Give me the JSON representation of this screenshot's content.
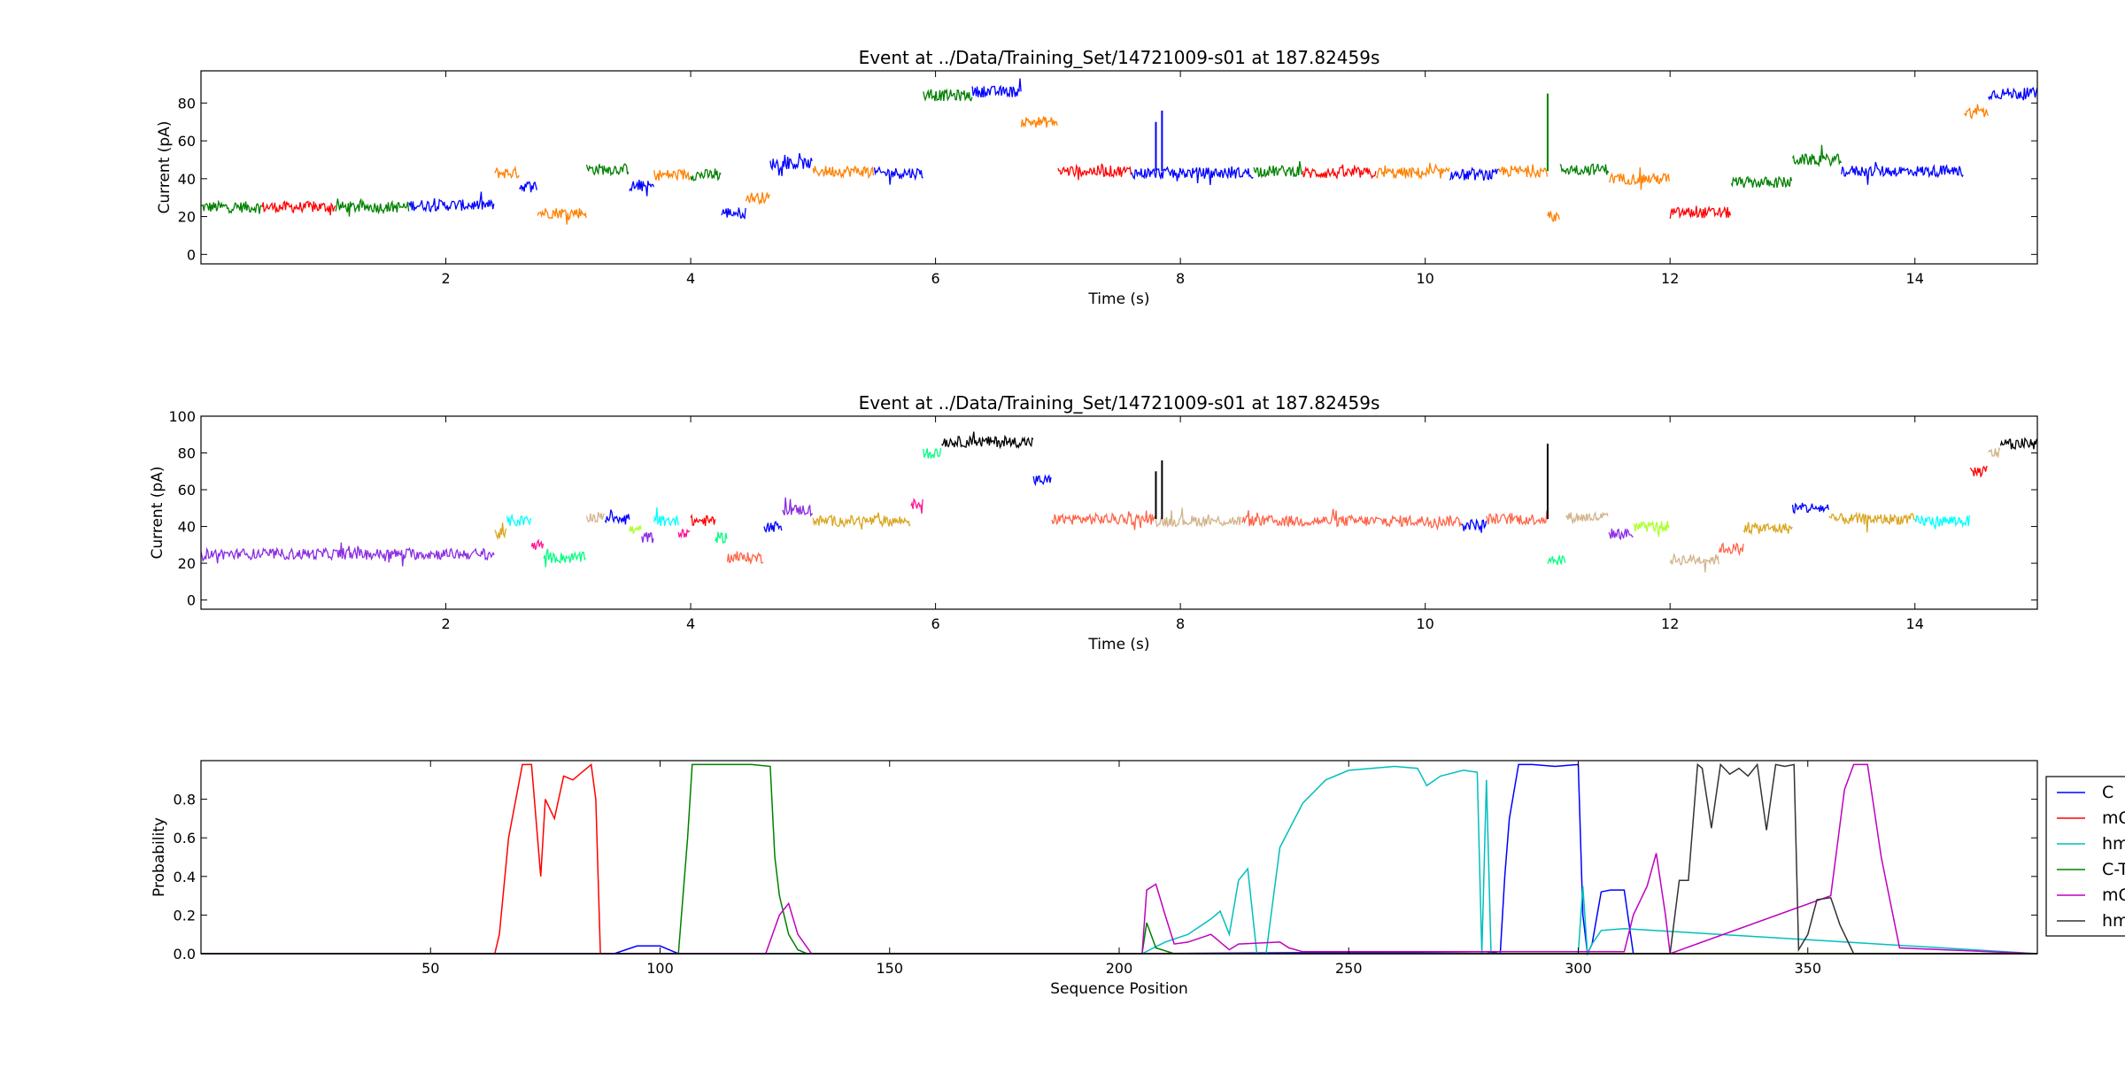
{
  "chart_data": [
    {
      "type": "line",
      "title": "Event at ../Data/Training_Set/14721009-s01 at 187.82459s",
      "xlabel": "Time (s)",
      "ylabel": "Current (pA)",
      "xlim": [
        0,
        15
      ],
      "ylim": [
        -5,
        97
      ],
      "xticks": [
        2,
        4,
        6,
        8,
        10,
        12,
        14
      ],
      "yticks": [
        0,
        20,
        40,
        60,
        80
      ],
      "grid": false,
      "segments": [
        {
          "t0": 0.0,
          "t1": 0.5,
          "level": 25,
          "color": "#008000"
        },
        {
          "t0": 0.5,
          "t1": 1.1,
          "level": 25,
          "color": "#ff0000"
        },
        {
          "t0": 1.1,
          "t1": 1.7,
          "level": 25,
          "color": "#008000"
        },
        {
          "t0": 1.7,
          "t1": 2.4,
          "level": 26,
          "color": "#0000ff"
        },
        {
          "t0": 2.4,
          "t1": 2.6,
          "level": 43,
          "color": "#ff8000"
        },
        {
          "t0": 2.6,
          "t1": 2.75,
          "level": 36,
          "color": "#0000ff"
        },
        {
          "t0": 2.75,
          "t1": 3.15,
          "level": 22,
          "color": "#ff8000"
        },
        {
          "t0": 3.15,
          "t1": 3.5,
          "level": 45,
          "color": "#008000"
        },
        {
          "t0": 3.5,
          "t1": 3.7,
          "level": 36,
          "color": "#0000ff"
        },
        {
          "t0": 3.7,
          "t1": 4.0,
          "level": 42,
          "color": "#ff8000"
        },
        {
          "t0": 4.0,
          "t1": 4.25,
          "level": 42,
          "color": "#008000"
        },
        {
          "t0": 4.25,
          "t1": 4.45,
          "level": 22,
          "color": "#0000ff"
        },
        {
          "t0": 4.45,
          "t1": 4.65,
          "level": 30,
          "color": "#ff8000"
        },
        {
          "t0": 4.65,
          "t1": 5.0,
          "level": 48,
          "color": "#0000ff"
        },
        {
          "t0": 5.0,
          "t1": 5.5,
          "level": 44,
          "color": "#ff8000"
        },
        {
          "t0": 5.5,
          "t1": 5.9,
          "level": 43,
          "color": "#0000ff"
        },
        {
          "t0": 5.9,
          "t1": 6.3,
          "level": 84,
          "color": "#008000"
        },
        {
          "t0": 6.3,
          "t1": 6.7,
          "level": 86,
          "color": "#0000ff"
        },
        {
          "t0": 6.7,
          "t1": 7.0,
          "level": 70,
          "color": "#ff8000"
        },
        {
          "t0": 7.0,
          "t1": 7.6,
          "level": 44,
          "color": "#ff0000"
        },
        {
          "t0": 7.6,
          "t1": 8.6,
          "level": 43,
          "color": "#0000ff"
        },
        {
          "t0": 8.6,
          "t1": 9.0,
          "level": 44,
          "color": "#008000"
        },
        {
          "t0": 9.0,
          "t1": 9.6,
          "level": 43,
          "color": "#ff0000"
        },
        {
          "t0": 9.6,
          "t1": 10.2,
          "level": 43,
          "color": "#ff8000"
        },
        {
          "t0": 10.2,
          "t1": 10.6,
          "level": 42,
          "color": "#0000ff"
        },
        {
          "t0": 10.6,
          "t1": 11.0,
          "level": 44,
          "color": "#ff8000"
        },
        {
          "t0": 11.0,
          "t1": 11.1,
          "level": 20,
          "color": "#ff8000"
        },
        {
          "t0": 11.1,
          "t1": 11.5,
          "level": 45,
          "color": "#008000"
        },
        {
          "t0": 11.5,
          "t1": 12.0,
          "level": 40,
          "color": "#ff8000"
        },
        {
          "t0": 12.0,
          "t1": 12.5,
          "level": 22,
          "color": "#ff0000"
        },
        {
          "t0": 12.5,
          "t1": 13.0,
          "level": 38,
          "color": "#008000"
        },
        {
          "t0": 13.0,
          "t1": 13.4,
          "level": 50,
          "color": "#008000"
        },
        {
          "t0": 13.4,
          "t1": 14.4,
          "level": 44,
          "color": "#0000ff"
        },
        {
          "t0": 14.4,
          "t1": 14.6,
          "level": 75,
          "color": "#ff8000"
        },
        {
          "t0": 14.6,
          "t1": 15.0,
          "level": 85,
          "color": "#0000ff"
        }
      ],
      "spikes": [
        {
          "t": 7.8,
          "from": 44,
          "to": 70,
          "color": "#0000ff"
        },
        {
          "t": 7.85,
          "from": 44,
          "to": 76,
          "color": "#0000ff"
        },
        {
          "t": 11.0,
          "from": 44,
          "to": 85,
          "color": "#008000"
        }
      ]
    },
    {
      "type": "line",
      "title": "Event at ../Data/Training_Set/14721009-s01 at 187.82459s",
      "xlabel": "Time (s)",
      "ylabel": "Current (pA)",
      "xlim": [
        0,
        15
      ],
      "ylim": [
        -5,
        100
      ],
      "xticks": [
        2,
        4,
        6,
        8,
        10,
        12,
        14
      ],
      "yticks": [
        0,
        20,
        40,
        60,
        80,
        100
      ],
      "grid": false,
      "segments": [
        {
          "t0": 0.0,
          "t1": 2.4,
          "level": 25,
          "color": "#8a2be2"
        },
        {
          "t0": 2.4,
          "t1": 2.5,
          "level": 36,
          "color": "#daa520"
        },
        {
          "t0": 2.5,
          "t1": 2.7,
          "level": 43,
          "color": "#00ffff"
        },
        {
          "t0": 2.7,
          "t1": 2.8,
          "level": 30,
          "color": "#ff1493"
        },
        {
          "t0": 2.8,
          "t1": 3.15,
          "level": 23,
          "color": "#00ff7f"
        },
        {
          "t0": 3.15,
          "t1": 3.3,
          "level": 45,
          "color": "#d2b48c"
        },
        {
          "t0": 3.3,
          "t1": 3.5,
          "level": 45,
          "color": "#0000ff"
        },
        {
          "t0": 3.5,
          "t1": 3.6,
          "level": 38,
          "color": "#adff2f"
        },
        {
          "t0": 3.6,
          "t1": 3.7,
          "level": 34,
          "color": "#8a2be2"
        },
        {
          "t0": 3.7,
          "t1": 3.9,
          "level": 43,
          "color": "#00ffff"
        },
        {
          "t0": 3.9,
          "t1": 4.0,
          "level": 37,
          "color": "#ff1493"
        },
        {
          "t0": 4.0,
          "t1": 4.2,
          "level": 43,
          "color": "#ff0000"
        },
        {
          "t0": 4.2,
          "t1": 4.3,
          "level": 34,
          "color": "#00ff7f"
        },
        {
          "t0": 4.3,
          "t1": 4.6,
          "level": 23,
          "color": "#ff6347"
        },
        {
          "t0": 4.6,
          "t1": 4.75,
          "level": 40,
          "color": "#0000ff"
        },
        {
          "t0": 4.75,
          "t1": 5.0,
          "level": 49,
          "color": "#8a2be2"
        },
        {
          "t0": 5.0,
          "t1": 5.8,
          "level": 43,
          "color": "#daa520"
        },
        {
          "t0": 5.8,
          "t1": 5.9,
          "level": 52,
          "color": "#ff1493"
        },
        {
          "t0": 5.9,
          "t1": 6.05,
          "level": 80,
          "color": "#00ff7f"
        },
        {
          "t0": 6.05,
          "t1": 6.8,
          "level": 86,
          "color": "#000000"
        },
        {
          "t0": 6.8,
          "t1": 6.95,
          "level": 65,
          "color": "#0000ff"
        },
        {
          "t0": 6.95,
          "t1": 7.8,
          "level": 44,
          "color": "#ff6347"
        },
        {
          "t0": 7.8,
          "t1": 8.5,
          "level": 43,
          "color": "#d2b48c"
        },
        {
          "t0": 8.5,
          "t1": 10.3,
          "level": 43,
          "color": "#ff6347"
        },
        {
          "t0": 10.3,
          "t1": 10.5,
          "level": 41,
          "color": "#0000ff"
        },
        {
          "t0": 10.5,
          "t1": 11.0,
          "level": 44,
          "color": "#ff6347"
        },
        {
          "t0": 11.0,
          "t1": 11.15,
          "level": 22,
          "color": "#00ff7f"
        },
        {
          "t0": 11.15,
          "t1": 11.5,
          "level": 45,
          "color": "#d2b48c"
        },
        {
          "t0": 11.5,
          "t1": 11.7,
          "level": 36,
          "color": "#8a2be2"
        },
        {
          "t0": 11.7,
          "t1": 12.0,
          "level": 40,
          "color": "#adff2f"
        },
        {
          "t0": 12.0,
          "t1": 12.4,
          "level": 22,
          "color": "#d2b48c"
        },
        {
          "t0": 12.4,
          "t1": 12.6,
          "level": 28,
          "color": "#ff6347"
        },
        {
          "t0": 12.6,
          "t1": 13.0,
          "level": 39,
          "color": "#daa520"
        },
        {
          "t0": 13.0,
          "t1": 13.3,
          "level": 50,
          "color": "#0000ff"
        },
        {
          "t0": 13.3,
          "t1": 14.0,
          "level": 44,
          "color": "#daa520"
        },
        {
          "t0": 14.0,
          "t1": 14.45,
          "level": 43,
          "color": "#00ffff"
        },
        {
          "t0": 14.45,
          "t1": 14.6,
          "level": 70,
          "color": "#ff0000"
        },
        {
          "t0": 14.6,
          "t1": 14.7,
          "level": 80,
          "color": "#d2b48c"
        },
        {
          "t0": 14.7,
          "t1": 15.0,
          "level": 85,
          "color": "#000000"
        }
      ],
      "spikes": [
        {
          "t": 7.8,
          "from": 44,
          "to": 70,
          "color": "#000000"
        },
        {
          "t": 7.85,
          "from": 44,
          "to": 76,
          "color": "#000000"
        },
        {
          "t": 11.0,
          "from": 44,
          "to": 85,
          "color": "#000000"
        }
      ]
    },
    {
      "type": "line",
      "title": "",
      "xlabel": "Sequence Position",
      "ylabel": "Probability",
      "xlim": [
        0,
        400
      ],
      "ylim": [
        0,
        1.0
      ],
      "xticks": [
        50,
        100,
        150,
        200,
        250,
        300,
        350
      ],
      "yticks": [
        0.0,
        0.2,
        0.4,
        0.6,
        0.8
      ],
      "ytick_labels": [
        "0.0",
        "0.2",
        "0.4",
        "0.6",
        "0.8"
      ],
      "grid": false,
      "legend": "outside-right",
      "series": [
        {
          "name": "C",
          "color": "#0000ff",
          "x": [
            0,
            90,
            95,
            100,
            104,
            106,
            200,
            280,
            283,
            284,
            285,
            287,
            290,
            295,
            300,
            301,
            302,
            303,
            305,
            307,
            310,
            312,
            315,
            400
          ],
          "y": [
            0,
            0,
            0.04,
            0.04,
            0,
            0,
            0,
            0.01,
            0,
            0.4,
            0.7,
            0.98,
            0.98,
            0.97,
            0.98,
            0.2,
            0,
            0.05,
            0.32,
            0.33,
            0.33,
            0,
            0,
            0
          ]
        },
        {
          "name": "mC",
          "color": "#ff0000",
          "x": [
            0,
            64,
            65,
            67,
            70,
            72,
            74,
            75,
            77,
            79,
            81,
            85,
            86,
            87,
            400
          ],
          "y": [
            0,
            0,
            0.1,
            0.6,
            0.98,
            0.98,
            0.4,
            0.8,
            0.7,
            0.92,
            0.9,
            0.98,
            0.8,
            0,
            0
          ]
        },
        {
          "name": "hmC",
          "color": "#00bfbf",
          "x": [
            0,
            205,
            210,
            215,
            220,
            222,
            224,
            226,
            228,
            230,
            232,
            235,
            240,
            245,
            250,
            260,
            265,
            267,
            270,
            275,
            278,
            279,
            280,
            281,
            300,
            301,
            302,
            303,
            305,
            310,
            400
          ],
          "y": [
            0,
            0,
            0.06,
            0.1,
            0.18,
            0.22,
            0.1,
            0.38,
            0.44,
            0,
            0,
            0.55,
            0.78,
            0.9,
            0.95,
            0.97,
            0.96,
            0.87,
            0.92,
            0.95,
            0.94,
            0,
            0.9,
            0,
            0,
            0.35,
            0,
            0.05,
            0.12,
            0.13,
            0
          ]
        },
        {
          "name": "C-T",
          "color": "#008000",
          "x": [
            0,
            104,
            106,
            107,
            110,
            115,
            120,
            124,
            125,
            126,
            128,
            130,
            132,
            205,
            206,
            208,
            212,
            400
          ],
          "y": [
            0,
            0,
            0.6,
            0.98,
            0.98,
            0.98,
            0.98,
            0.97,
            0.5,
            0.3,
            0.1,
            0.02,
            0,
            0,
            0.16,
            0.03,
            0,
            0
          ]
        },
        {
          "name": "mC-T",
          "color": "#bf00bf",
          "x": [
            0,
            123,
            126,
            128,
            130,
            133,
            205,
            206,
            208,
            210,
            212,
            215,
            220,
            222,
            224,
            226,
            235,
            237,
            240,
            310,
            312,
            315,
            317,
            319,
            320,
            355,
            358,
            360,
            363,
            366,
            370,
            400
          ],
          "y": [
            0,
            0,
            0.2,
            0.26,
            0.1,
            0,
            0,
            0.33,
            0.36,
            0.2,
            0.05,
            0.06,
            0.1,
            0.06,
            0.02,
            0.05,
            0.06,
            0.03,
            0.01,
            0.01,
            0.2,
            0.35,
            0.52,
            0.2,
            0,
            0.3,
            0.85,
            0.98,
            0.98,
            0.5,
            0.03,
            0
          ]
        },
        {
          "name": "hmC-T",
          "color": "#333333",
          "x": [
            0,
            320,
            322,
            324,
            326,
            327,
            329,
            331,
            333,
            335,
            337,
            339,
            341,
            343,
            345,
            347,
            348,
            350,
            352,
            355,
            357,
            360,
            400
          ],
          "y": [
            0,
            0,
            0.38,
            0.38,
            0.98,
            0.96,
            0.65,
            0.98,
            0.93,
            0.96,
            0.92,
            0.98,
            0.64,
            0.98,
            0.97,
            0.98,
            0.02,
            0.1,
            0.28,
            0.29,
            0.15,
            0,
            0
          ]
        }
      ]
    }
  ]
}
